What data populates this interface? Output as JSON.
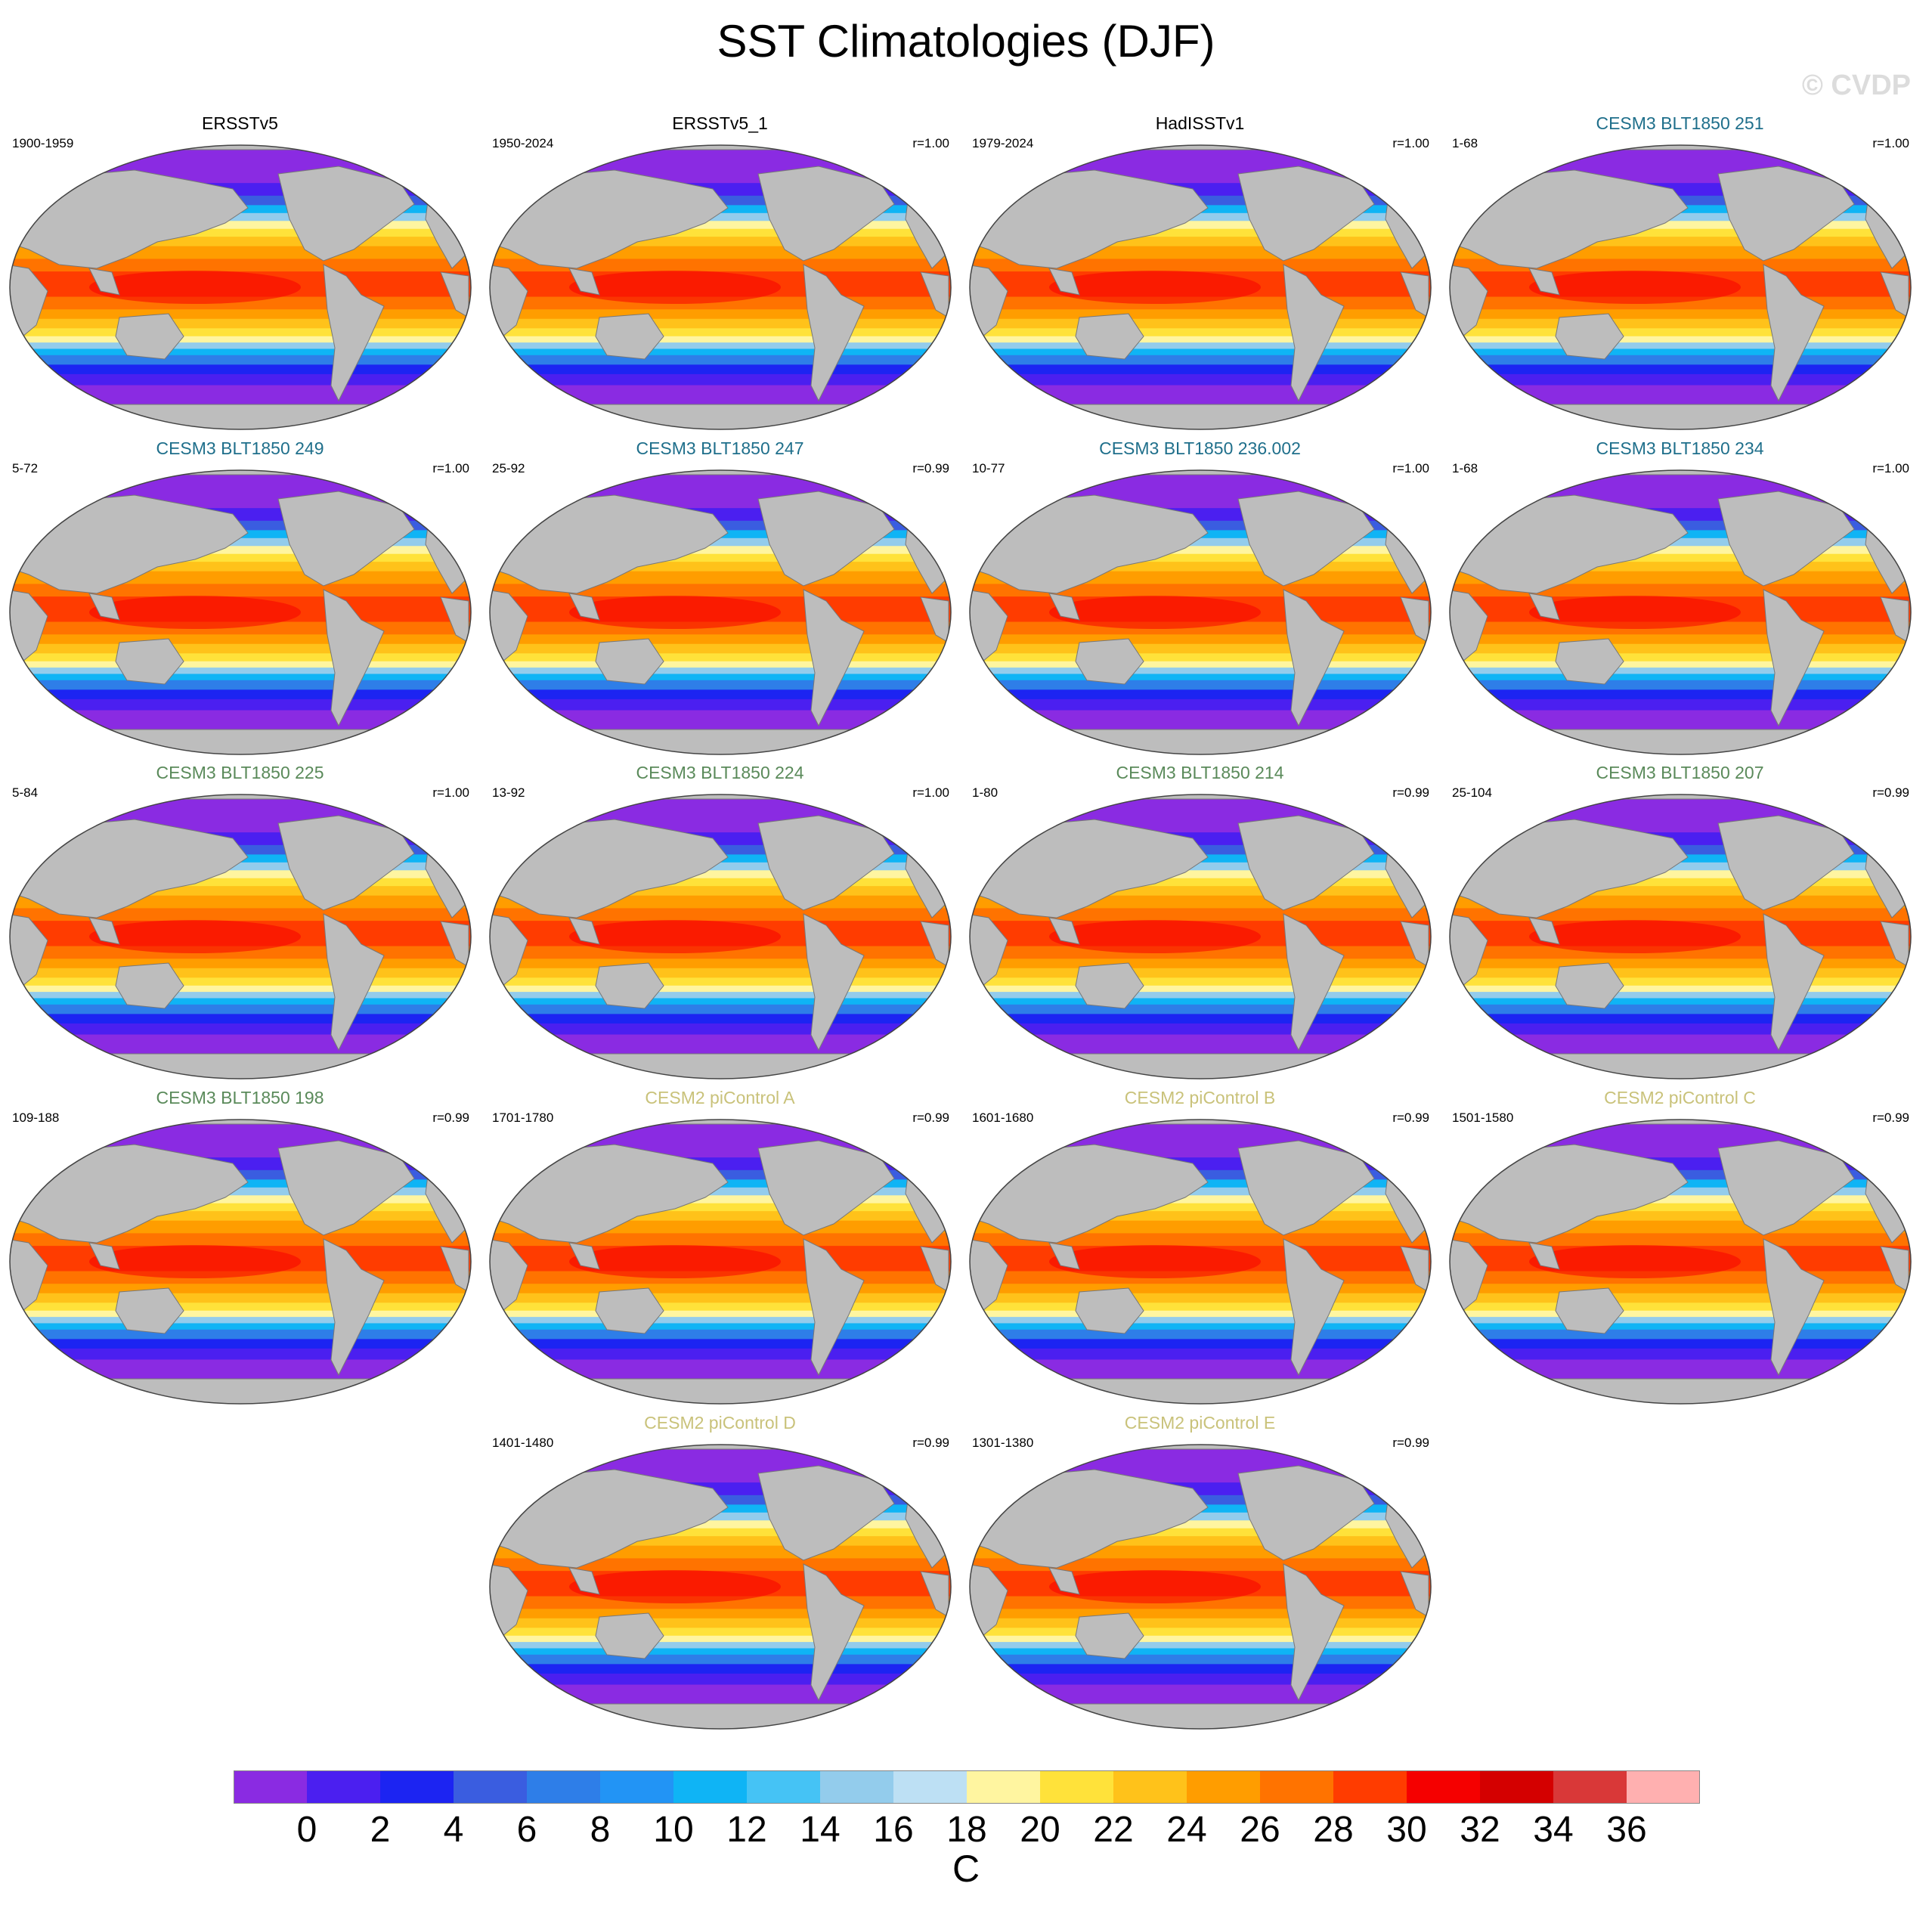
{
  "figure": {
    "title": "SST Climatologies (DJF)",
    "watermark": "© CVDP"
  },
  "chart_data": {
    "type": "heatmap",
    "title": "SST Climatologies (DJF)",
    "colorbar": {
      "label": "C",
      "levels": [
        0,
        2,
        4,
        6,
        8,
        10,
        12,
        14,
        16,
        18,
        20,
        22,
        24,
        26,
        28,
        30,
        32,
        34,
        36
      ],
      "tick_labels": [
        "0",
        "2",
        "4",
        "6",
        "8",
        "10",
        "12",
        "14",
        "16",
        "18",
        "20",
        "22",
        "24",
        "26",
        "28",
        "30",
        "32",
        "34",
        "36"
      ],
      "colors": [
        "#8a2be2",
        "#4b1ff0",
        "#1c24f2",
        "#3a5de0",
        "#2e7ee8",
        "#2294f5",
        "#0fb4f5",
        "#45c3f5",
        "#93ccec",
        "#bde0f4",
        "#fff5a0",
        "#ffe23a",
        "#ffc21a",
        "#ff9d00",
        "#ff7300",
        "#ff3c00",
        "#f50000",
        "#d40000",
        "#d93838",
        "#ffb0b0"
      ]
    },
    "panels": [
      {
        "title": "ERSSTv5",
        "period": "1900-1959",
        "r": "",
        "title_color": "#000000"
      },
      {
        "title": "ERSSTv5_1",
        "period": "1950-2024",
        "r": "r=1.00",
        "title_color": "#000000"
      },
      {
        "title": "HadISSTv1",
        "period": "1979-2024",
        "r": "r=1.00",
        "title_color": "#000000"
      },
      {
        "title": "CESM3 BLT1850 251",
        "period": "1-68",
        "r": "r=1.00",
        "title_color": "#1f6f8b"
      },
      {
        "title": "CESM3 BLT1850 249",
        "period": "5-72",
        "r": "r=1.00",
        "title_color": "#1f6f8b"
      },
      {
        "title": "CESM3 BLT1850 247",
        "period": "25-92",
        "r": "r=0.99",
        "title_color": "#1f6f8b"
      },
      {
        "title": "CESM3 BLT1850 236.002",
        "period": "10-77",
        "r": "r=1.00",
        "title_color": "#1f6f8b"
      },
      {
        "title": "CESM3 BLT1850 234",
        "period": "1-68",
        "r": "r=1.00",
        "title_color": "#1f6f8b"
      },
      {
        "title": "CESM3 BLT1850 225",
        "period": "5-84",
        "r": "r=1.00",
        "title_color": "#5a8a5a"
      },
      {
        "title": "CESM3 BLT1850 224",
        "period": "13-92",
        "r": "r=1.00",
        "title_color": "#5a8a5a"
      },
      {
        "title": "CESM3 BLT1850 214",
        "period": "1-80",
        "r": "r=0.99",
        "title_color": "#5a8a5a"
      },
      {
        "title": "CESM3 BLT1850 207",
        "period": "25-104",
        "r": "r=0.99",
        "title_color": "#5a8a5a"
      },
      {
        "title": "CESM3 BLT1850 198",
        "period": "109-188",
        "r": "r=0.99",
        "title_color": "#5a8a5a"
      },
      {
        "title": "CESM2 piControl A",
        "period": "1701-1780",
        "r": "r=0.99",
        "title_color": "#c9c27a"
      },
      {
        "title": "CESM2 piControl B",
        "period": "1601-1680",
        "r": "r=0.99",
        "title_color": "#c9c27a"
      },
      {
        "title": "CESM2 piControl C",
        "period": "1501-1580",
        "r": "r=0.99",
        "title_color": "#c9c27a"
      },
      {
        "title": "CESM2 piControl D",
        "period": "1401-1480",
        "r": "r=0.99",
        "title_color": "#c9c27a"
      },
      {
        "title": "CESM2 piControl E",
        "period": "1301-1380",
        "r": "r=0.99",
        "title_color": "#c9c27a"
      }
    ]
  }
}
